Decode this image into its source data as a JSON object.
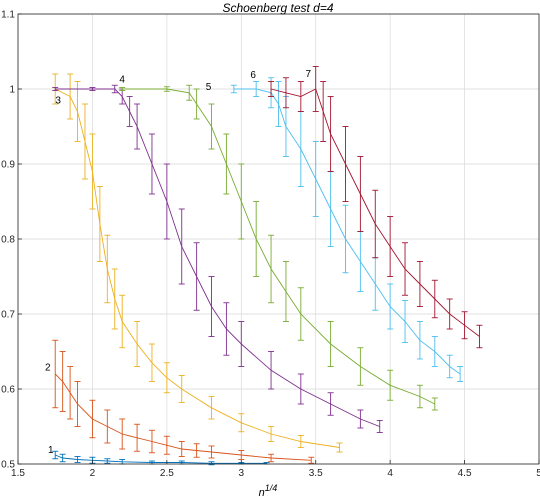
{
  "chart_data": {
    "type": "line",
    "title": "Schoenberg test d=4",
    "xlabel": "n",
    "xlabel_superscript": "1/4",
    "ylabel": "",
    "xlim": [
      1.5,
      5
    ],
    "ylim": [
      0.5,
      1.1
    ],
    "xticks": [
      "1.5",
      "2",
      "2.5",
      "3",
      "3.5",
      "4",
      "4.5",
      "5"
    ],
    "yticks": [
      "0.5",
      "0.6",
      "0.7",
      "0.8",
      "0.9",
      "1",
      "1.1"
    ],
    "grid": true,
    "errorbars": true,
    "series": [
      {
        "name": "1",
        "color": "#0072BD",
        "x": [
          1.75,
          1.8,
          1.9,
          2.0,
          2.1,
          2.2,
          2.4,
          2.6,
          2.8,
          3.0,
          3.17
        ],
        "y": [
          0.512,
          0.508,
          0.506,
          0.505,
          0.504,
          0.503,
          0.502,
          0.502,
          0.501,
          0.501,
          0.501
        ],
        "err": [
          0.005,
          0.005,
          0.004,
          0.004,
          0.003,
          0.003,
          0.002,
          0.002,
          0.002,
          0.001,
          0.001
        ]
      },
      {
        "name": "2",
        "color": "#D95319",
        "x": [
          1.75,
          1.8,
          1.85,
          1.9,
          2.0,
          2.1,
          2.2,
          2.3,
          2.4,
          2.5,
          2.6,
          2.7,
          2.8,
          3.0,
          3.2,
          3.47
        ],
        "y": [
          0.62,
          0.61,
          0.595,
          0.58,
          0.56,
          0.55,
          0.54,
          0.535,
          0.53,
          0.525,
          0.52,
          0.518,
          0.516,
          0.512,
          0.508,
          0.505
        ],
        "err": [
          0.045,
          0.04,
          0.035,
          0.03,
          0.025,
          0.022,
          0.02,
          0.018,
          0.015,
          0.012,
          0.01,
          0.009,
          0.008,
          0.006,
          0.005,
          0.004
        ]
      },
      {
        "name": "3",
        "color": "#EDB120",
        "x": [
          1.75,
          1.85,
          1.9,
          1.95,
          2.0,
          2.05,
          2.1,
          2.15,
          2.2,
          2.3,
          2.4,
          2.5,
          2.6,
          2.8,
          3.0,
          3.2,
          3.4,
          3.66
        ],
        "y": [
          1.0,
          0.99,
          0.97,
          0.93,
          0.89,
          0.82,
          0.76,
          0.72,
          0.69,
          0.66,
          0.635,
          0.615,
          0.6,
          0.575,
          0.555,
          0.54,
          0.53,
          0.522
        ],
        "err": [
          0.02,
          0.03,
          0.04,
          0.05,
          0.05,
          0.05,
          0.045,
          0.04,
          0.035,
          0.03,
          0.025,
          0.02,
          0.018,
          0.015,
          0.012,
          0.01,
          0.008,
          0.006
        ]
      },
      {
        "name": "4",
        "color": "#7E2F8E",
        "x": [
          1.75,
          2.0,
          2.15,
          2.2,
          2.25,
          2.3,
          2.4,
          2.5,
          2.6,
          2.7,
          2.8,
          2.9,
          3.0,
          3.2,
          3.4,
          3.6,
          3.8,
          3.93
        ],
        "y": [
          1.0,
          1.0,
          1.0,
          0.99,
          0.97,
          0.95,
          0.9,
          0.85,
          0.79,
          0.75,
          0.71,
          0.68,
          0.66,
          0.625,
          0.6,
          0.58,
          0.56,
          0.55
        ],
        "err": [
          0.002,
          0.002,
          0.005,
          0.01,
          0.02,
          0.03,
          0.04,
          0.05,
          0.05,
          0.045,
          0.04,
          0.035,
          0.03,
          0.025,
          0.02,
          0.015,
          0.012,
          0.008
        ]
      },
      {
        "name": "5",
        "color": "#77AC30",
        "x": [
          2.2,
          2.5,
          2.65,
          2.7,
          2.8,
          2.9,
          3.0,
          3.1,
          3.2,
          3.3,
          3.4,
          3.6,
          3.8,
          4.0,
          4.2,
          4.3
        ],
        "y": [
          1.0,
          1.0,
          0.995,
          0.98,
          0.95,
          0.9,
          0.85,
          0.8,
          0.76,
          0.73,
          0.7,
          0.66,
          0.63,
          0.605,
          0.59,
          0.58
        ],
        "err": [
          0.002,
          0.003,
          0.01,
          0.02,
          0.03,
          0.04,
          0.05,
          0.05,
          0.045,
          0.04,
          0.035,
          0.03,
          0.025,
          0.02,
          0.015,
          0.008
        ]
      },
      {
        "name": "6",
        "color": "#4DBEEE",
        "x": [
          2.95,
          3.1,
          3.2,
          3.25,
          3.3,
          3.4,
          3.5,
          3.6,
          3.7,
          3.8,
          3.9,
          4.0,
          4.1,
          4.2,
          4.3,
          4.4,
          4.47
        ],
        "y": [
          1.0,
          1.0,
          0.995,
          0.98,
          0.95,
          0.92,
          0.88,
          0.84,
          0.8,
          0.77,
          0.74,
          0.71,
          0.69,
          0.665,
          0.65,
          0.63,
          0.62
        ],
        "err": [
          0.005,
          0.01,
          0.02,
          0.03,
          0.04,
          0.05,
          0.05,
          0.05,
          0.045,
          0.04,
          0.035,
          0.03,
          0.028,
          0.025,
          0.02,
          0.015,
          0.01
        ]
      },
      {
        "name": "7",
        "color": "#A2142F",
        "x": [
          3.2,
          3.3,
          3.4,
          3.5,
          3.55,
          3.6,
          3.7,
          3.8,
          3.9,
          4.0,
          4.1,
          4.2,
          4.3,
          4.4,
          4.5,
          4.6
        ],
        "y": [
          1.0,
          0.995,
          0.99,
          1.0,
          0.97,
          0.94,
          0.9,
          0.86,
          0.82,
          0.79,
          0.76,
          0.74,
          0.72,
          0.7,
          0.685,
          0.67
        ],
        "err": [
          0.01,
          0.02,
          0.02,
          0.03,
          0.04,
          0.05,
          0.05,
          0.05,
          0.045,
          0.04,
          0.035,
          0.03,
          0.025,
          0.02,
          0.018,
          0.015
        ]
      }
    ],
    "annotations": [
      {
        "text": "1",
        "x": 1.72,
        "y": 0.515
      },
      {
        "text": "2",
        "x": 1.7,
        "y": 0.625
      },
      {
        "text": "3",
        "x": 1.77,
        "y": 0.981
      },
      {
        "text": "4",
        "x": 2.2,
        "y": 1.009
      },
      {
        "text": "5",
        "x": 2.78,
        "y": 0.999
      },
      {
        "text": "6",
        "x": 3.08,
        "y": 1.015
      },
      {
        "text": "7",
        "x": 3.45,
        "y": 1.016
      }
    ]
  }
}
